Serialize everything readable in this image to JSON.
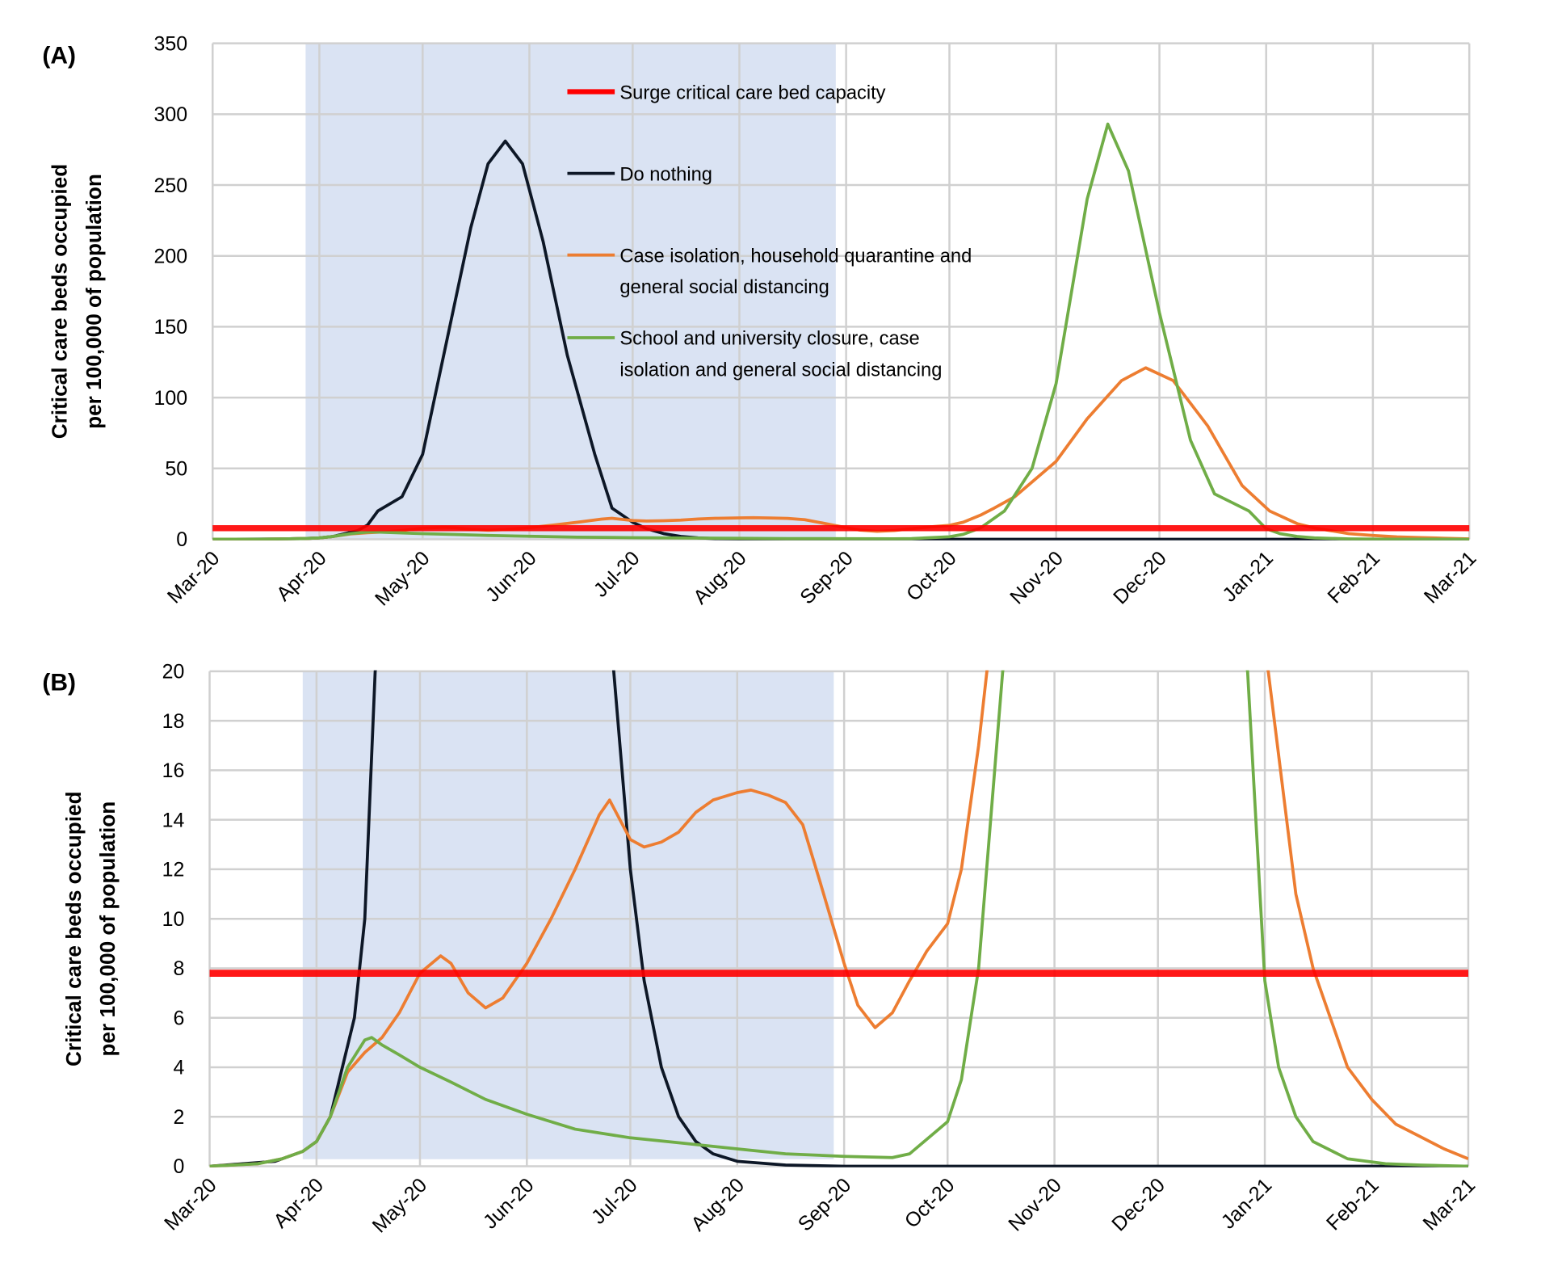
{
  "chart_data": [
    {
      "type": "line",
      "panel_label": "(A)",
      "ylabel": [
        "Critical care beds occupied",
        "per 100,000 of population"
      ],
      "xlabel": "",
      "ylim": [
        0,
        350
      ],
      "yticks": [
        0,
        50,
        100,
        150,
        200,
        250,
        300,
        350
      ],
      "xlim": [
        "2020-03-01",
        "2021-03-01"
      ],
      "xtick_labels": [
        "Mar-20",
        "Apr-20",
        "May-20",
        "Jun-20",
        "Jul-20",
        "Aug-20",
        "Sep-20",
        "Oct-20",
        "Nov-20",
        "Dec-20",
        "Jan-21",
        "Feb-21",
        "Mar-21"
      ],
      "grid": true,
      "legend_placement": "top-center",
      "shaded_period": [
        "2020-03-28",
        "2020-08-29"
      ],
      "shade_color": "#dae3f3"
    },
    {
      "type": "line",
      "panel_label": "(B)",
      "ylabel": [
        "Critical care beds occupied",
        "per 100,000 of population"
      ],
      "xlabel": "",
      "ylim": [
        0,
        20
      ],
      "yticks": [
        0,
        2,
        4,
        6,
        8,
        10,
        12,
        14,
        16,
        18,
        20
      ],
      "xlim": [
        "2020-03-01",
        "2021-03-01"
      ],
      "xtick_labels": [
        "Mar-20",
        "Apr-20",
        "May-20",
        "Jun-20",
        "Jul-20",
        "Aug-20",
        "Sep-20",
        "Oct-20",
        "Nov-20",
        "Dec-20",
        "Jan-21",
        "Feb-21",
        "Mar-21"
      ],
      "grid": true,
      "legend_placement": "none",
      "shaded_period": [
        "2020-03-28",
        "2020-08-29"
      ],
      "shade_color": "#dae3f3"
    }
  ],
  "capacity": {
    "name": "Surge critical care bed capacity",
    "value": 7.8,
    "color": "#ff0000"
  },
  "series": [
    {
      "name": "Do nothing",
      "name_lines": [
        "Do nothing"
      ],
      "color": "#0d1726",
      "points": [
        [
          "2020-03-01",
          0
        ],
        [
          "2020-03-20",
          0.2
        ],
        [
          "2020-03-28",
          0.6
        ],
        [
          "2020-04-01",
          1
        ],
        [
          "2020-04-05",
          2
        ],
        [
          "2020-04-12",
          6
        ],
        [
          "2020-04-15",
          10
        ],
        [
          "2020-04-18",
          20
        ],
        [
          "2020-04-25",
          30
        ],
        [
          "2020-05-01",
          60
        ],
        [
          "2020-05-08",
          140
        ],
        [
          "2020-05-15",
          220
        ],
        [
          "2020-05-20",
          265
        ],
        [
          "2020-05-25",
          281
        ],
        [
          "2020-05-30",
          265
        ],
        [
          "2020-06-05",
          210
        ],
        [
          "2020-06-12",
          130
        ],
        [
          "2020-06-20",
          60
        ],
        [
          "2020-06-25",
          22
        ],
        [
          "2020-07-01",
          12
        ],
        [
          "2020-07-05",
          7.5
        ],
        [
          "2020-07-10",
          4
        ],
        [
          "2020-07-15",
          2
        ],
        [
          "2020-07-20",
          1
        ],
        [
          "2020-07-25",
          0.5
        ],
        [
          "2020-08-01",
          0.2
        ],
        [
          "2020-08-15",
          0.05
        ],
        [
          "2020-09-01",
          0
        ],
        [
          "2021-03-01",
          0
        ]
      ]
    },
    {
      "name": "Case isolation, household quarantine and general social distancing",
      "name_lines": [
        "Case isolation, household quarantine and",
        "general social distancing"
      ],
      "color": "#ed7d31",
      "points": [
        [
          "2020-03-01",
          0
        ],
        [
          "2020-03-15",
          0.1
        ],
        [
          "2020-03-22",
          0.3
        ],
        [
          "2020-03-28",
          0.6
        ],
        [
          "2020-04-01",
          1
        ],
        [
          "2020-04-05",
          2
        ],
        [
          "2020-04-10",
          3.8
        ],
        [
          "2020-04-15",
          4.6
        ],
        [
          "2020-04-20",
          5.2
        ],
        [
          "2020-04-25",
          6.2
        ],
        [
          "2020-05-01",
          7.8
        ],
        [
          "2020-05-07",
          8.5
        ],
        [
          "2020-05-10",
          8.2
        ],
        [
          "2020-05-15",
          7
        ],
        [
          "2020-05-20",
          6.4
        ],
        [
          "2020-05-25",
          6.8
        ],
        [
          "2020-06-01",
          8.2
        ],
        [
          "2020-06-08",
          10
        ],
        [
          "2020-06-15",
          12
        ],
        [
          "2020-06-22",
          14.2
        ],
        [
          "2020-06-25",
          14.8
        ],
        [
          "2020-07-01",
          13.2
        ],
        [
          "2020-07-05",
          12.9
        ],
        [
          "2020-07-10",
          13.1
        ],
        [
          "2020-07-15",
          13.5
        ],
        [
          "2020-07-20",
          14.3
        ],
        [
          "2020-07-25",
          14.8
        ],
        [
          "2020-08-01",
          15.1
        ],
        [
          "2020-08-05",
          15.2
        ],
        [
          "2020-08-10",
          15
        ],
        [
          "2020-08-15",
          14.7
        ],
        [
          "2020-08-20",
          13.8
        ],
        [
          "2020-08-25",
          11.5
        ],
        [
          "2020-09-01",
          8.2
        ],
        [
          "2020-09-05",
          6.5
        ],
        [
          "2020-09-10",
          5.6
        ],
        [
          "2020-09-15",
          6.2
        ],
        [
          "2020-09-20",
          7.5
        ],
        [
          "2020-09-25",
          8.7
        ],
        [
          "2020-10-01",
          9.8
        ],
        [
          "2020-10-05",
          12
        ],
        [
          "2020-10-10",
          17
        ],
        [
          "2020-10-14",
          22
        ],
        [
          "2020-10-20",
          30
        ],
        [
          "2020-11-01",
          55
        ],
        [
          "2020-11-10",
          85
        ],
        [
          "2020-11-20",
          112
        ],
        [
          "2020-11-27",
          121
        ],
        [
          "2020-12-05",
          112
        ],
        [
          "2020-12-15",
          80
        ],
        [
          "2020-12-25",
          38
        ],
        [
          "2021-01-02",
          20
        ],
        [
          "2021-01-10",
          11
        ],
        [
          "2021-01-15",
          8
        ],
        [
          "2021-01-20",
          6
        ],
        [
          "2021-01-25",
          4
        ],
        [
          "2021-02-01",
          2.7
        ],
        [
          "2021-02-08",
          1.7
        ],
        [
          "2021-02-15",
          1.2
        ],
        [
          "2021-02-22",
          0.7
        ],
        [
          "2021-03-01",
          0.3
        ]
      ]
    },
    {
      "name": "School and university closure, case isolation and general social distancing",
      "name_lines": [
        "School and university closure, case",
        "isolation and general social distancing"
      ],
      "color": "#70ad47",
      "points": [
        [
          "2020-03-01",
          0
        ],
        [
          "2020-03-15",
          0.1
        ],
        [
          "2020-03-22",
          0.3
        ],
        [
          "2020-03-28",
          0.6
        ],
        [
          "2020-04-01",
          1
        ],
        [
          "2020-04-05",
          2
        ],
        [
          "2020-04-10",
          4
        ],
        [
          "2020-04-15",
          5.1
        ],
        [
          "2020-04-17",
          5.2
        ],
        [
          "2020-04-20",
          4.9
        ],
        [
          "2020-04-25",
          4.5
        ],
        [
          "2020-05-01",
          4
        ],
        [
          "2020-05-10",
          3.4
        ],
        [
          "2020-05-20",
          2.7
        ],
        [
          "2020-06-01",
          2.1
        ],
        [
          "2020-06-15",
          1.5
        ],
        [
          "2020-07-01",
          1.15
        ],
        [
          "2020-07-15",
          0.95
        ],
        [
          "2020-08-01",
          0.7
        ],
        [
          "2020-08-15",
          0.5
        ],
        [
          "2020-09-01",
          0.4
        ],
        [
          "2020-09-15",
          0.35
        ],
        [
          "2020-09-20",
          0.5
        ],
        [
          "2020-10-01",
          1.8
        ],
        [
          "2020-10-05",
          3.5
        ],
        [
          "2020-10-10",
          8
        ],
        [
          "2020-10-17",
          20
        ],
        [
          "2020-10-25",
          50
        ],
        [
          "2020-11-01",
          110
        ],
        [
          "2020-11-10",
          240
        ],
        [
          "2020-11-16",
          293
        ],
        [
          "2020-11-22",
          260
        ],
        [
          "2020-12-01",
          160
        ],
        [
          "2020-12-10",
          70
        ],
        [
          "2020-12-17",
          32
        ],
        [
          "2020-12-27",
          20
        ],
        [
          "2021-01-01",
          7.5
        ],
        [
          "2021-01-05",
          4
        ],
        [
          "2021-01-10",
          2
        ],
        [
          "2021-01-15",
          1
        ],
        [
          "2021-01-25",
          0.3
        ],
        [
          "2021-02-05",
          0.1
        ],
        [
          "2021-02-15",
          0.05
        ],
        [
          "2021-03-01",
          0
        ]
      ]
    }
  ]
}
